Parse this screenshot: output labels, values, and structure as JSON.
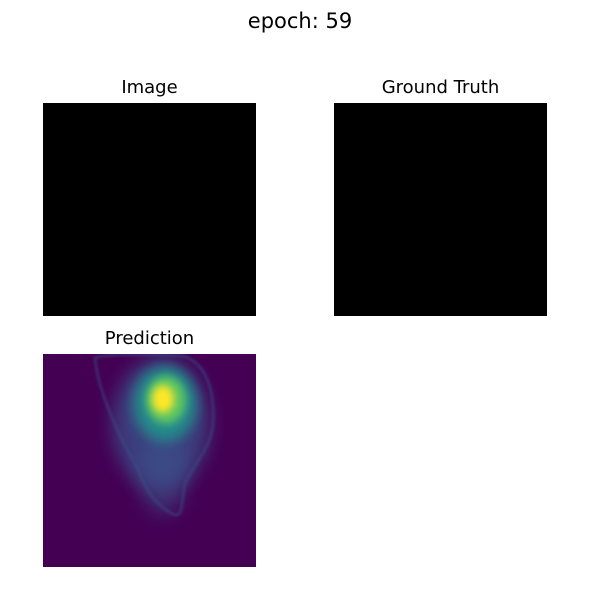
{
  "figure": {
    "title": "epoch: 59"
  },
  "panels": {
    "image": {
      "title": "Image",
      "fill": "#000000"
    },
    "ground_truth": {
      "title": "Ground Truth",
      "fill": "#000000"
    },
    "prediction": {
      "title": "Prediction",
      "colormap": "viridis",
      "colors": {
        "low": "#440154",
        "mid_low": "#3b528b",
        "mid": "#21918c",
        "mid_high": "#5ec962",
        "high": "#fde725"
      }
    }
  }
}
